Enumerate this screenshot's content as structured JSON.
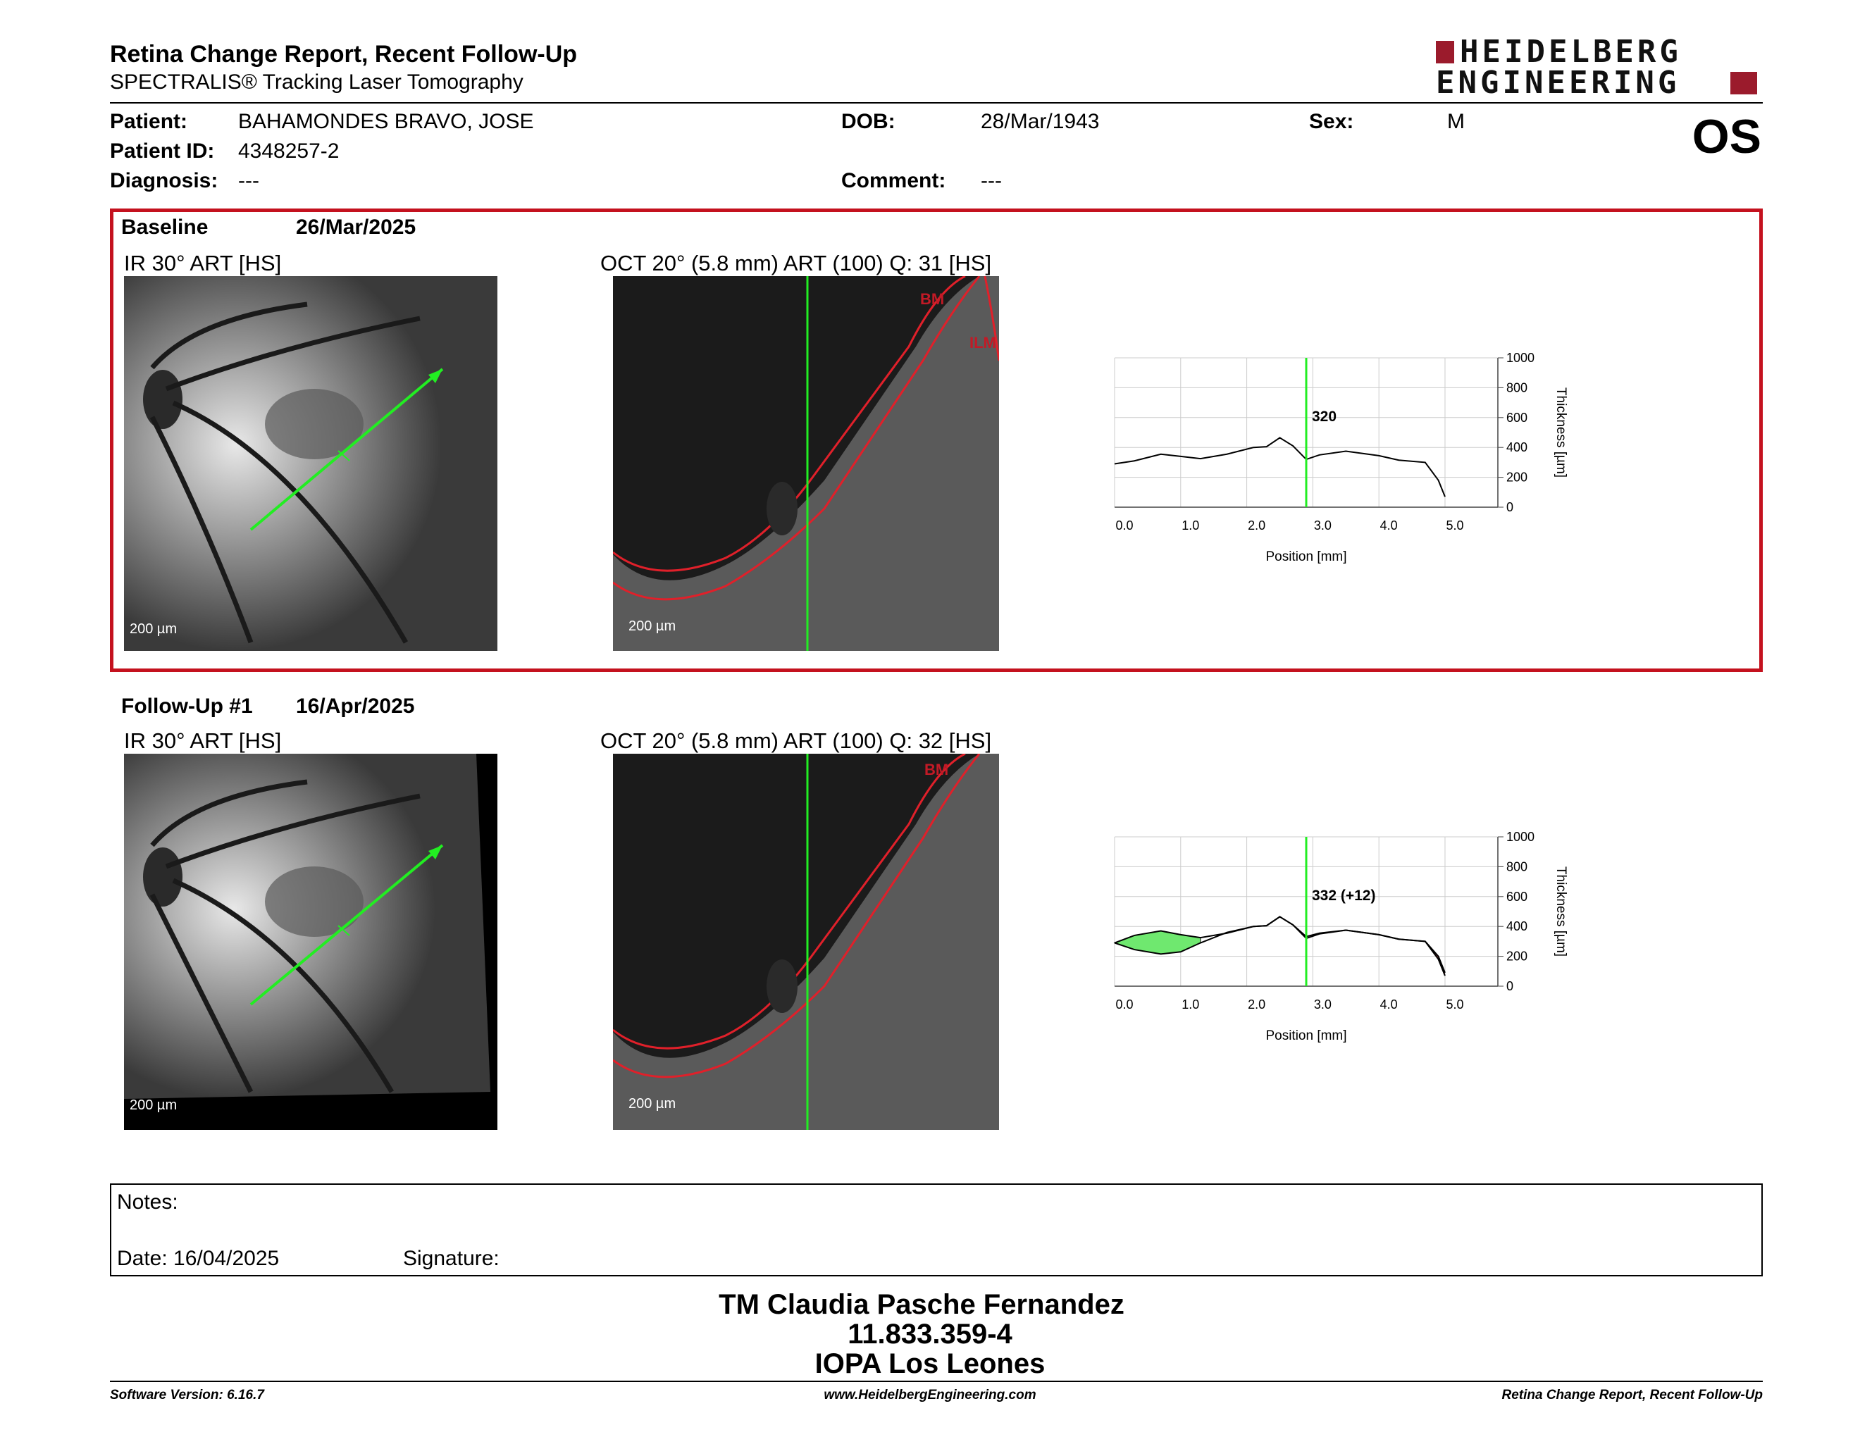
{
  "header": {
    "title": "Retina Change Report, Recent Follow-Up",
    "subtitle": "SPECTRALIS® Tracking Laser Tomography",
    "logo_line1": "HEIDELBERG",
    "logo_line2": "ENGINEERING",
    "eye": "OS"
  },
  "patient": {
    "patient_label": "Patient:",
    "patient_value": "BAHAMONDES BRAVO, JOSE",
    "id_label": "Patient ID:",
    "id_value": "4348257-2",
    "diagnosis_label": "Diagnosis:",
    "diagnosis_value": "---",
    "dob_label": "DOB:",
    "dob_value": "28/Mar/1943",
    "comment_label": "Comment:",
    "comment_value": "---",
    "sex_label": "Sex:",
    "sex_value": "M"
  },
  "baseline": {
    "label": "Baseline",
    "date": "26/Mar/2025",
    "ir_label": "IR 30° ART [HS]",
    "oct_label": "OCT 20° (5.8 mm) ART (100) Q: 31 [HS]",
    "ir_scale": "200 µm",
    "oct_scale": "200 µm",
    "layer_bm": "BM",
    "layer_ilm": "ILM",
    "thickness_value": "320"
  },
  "followup": {
    "label": "Follow-Up #1",
    "date": "16/Apr/2025",
    "ir_label": "IR 30° ART [HS]",
    "oct_label": "OCT 20° (5.8 mm) ART (100) Q: 32 [HS]",
    "ir_scale": "200 µm",
    "oct_scale": "200 µm",
    "layer_bm": "BM",
    "thickness_value": "332 (+12)"
  },
  "chart_data": [
    {
      "type": "line",
      "xlabel": "Position [mm]",
      "ylabel": "Thickness [µm]",
      "xlim": [
        0,
        5.8
      ],
      "ylim": [
        0,
        1000
      ],
      "x_ticks": [
        "0.0",
        "1.0",
        "2.0",
        "3.0",
        "4.0",
        "5.0"
      ],
      "y_ticks": [
        "0",
        "200",
        "400",
        "600",
        "800",
        "1000"
      ],
      "cursor_x": 2.9,
      "grid": true,
      "series": [
        {
          "x": [
            0,
            0.3,
            0.7,
            1.0,
            1.3,
            1.7,
            2.1,
            2.3,
            2.5,
            2.7,
            2.9,
            3.1,
            3.5,
            4.0,
            4.3,
            4.7,
            4.9,
            5.0
          ],
          "values": [
            290,
            310,
            355,
            340,
            325,
            355,
            400,
            405,
            465,
            410,
            320,
            350,
            375,
            345,
            315,
            300,
            180,
            70
          ]
        }
      ]
    },
    {
      "type": "line",
      "xlabel": "Position [mm]",
      "ylabel": "Thickness [µm]",
      "xlim": [
        0,
        5.8
      ],
      "ylim": [
        0,
        1000
      ],
      "x_ticks": [
        "0.0",
        "1.0",
        "2.0",
        "3.0",
        "4.0",
        "5.0"
      ],
      "y_ticks": [
        "0",
        "200",
        "400",
        "600",
        "800",
        "1000"
      ],
      "cursor_x": 2.9,
      "grid": true,
      "series": [
        {
          "x": [
            0,
            0.3,
            0.7,
            1.0,
            1.3,
            1.7,
            2.1,
            2.3,
            2.5,
            2.7,
            2.9,
            3.1,
            3.5,
            4.0,
            4.3,
            4.7,
            4.9,
            5.0
          ],
          "values": [
            290,
            245,
            215,
            230,
            290,
            360,
            400,
            405,
            465,
            410,
            332,
            355,
            375,
            345,
            315,
            300,
            200,
            90
          ]
        },
        {
          "x": [
            0,
            0.3,
            0.7,
            1.0,
            1.3,
            1.7,
            2.1,
            2.3,
            2.5,
            2.7,
            2.9,
            3.1,
            3.5,
            4.0,
            4.3,
            4.7,
            4.9,
            5.0
          ],
          "values": [
            290,
            340,
            370,
            345,
            325,
            355,
            400,
            405,
            465,
            410,
            320,
            350,
            375,
            345,
            315,
            300,
            180,
            70
          ]
        }
      ],
      "increase_color": "#6fe86f",
      "decrease_color": "#c9575f"
    }
  ],
  "notes": {
    "notes_label": "Notes:",
    "date_label": "Date: 16/04/2025",
    "signature_label": "Signature:"
  },
  "signature": {
    "name": "TM Claudia Pasche Fernandez",
    "rut": "11.833.359-4",
    "place": "IOPA Los Leones"
  },
  "footer": {
    "left": "Software Version: 6.16.7",
    "center": "www.HeidelbergEngineering.com",
    "right": "Retina Change Report, Recent Follow-Up"
  },
  "colors": {
    "brand": "#9b1b2c",
    "panel_border": "#c4111e",
    "scan_line": "#22ee22",
    "layer_line": "#e0202a"
  }
}
